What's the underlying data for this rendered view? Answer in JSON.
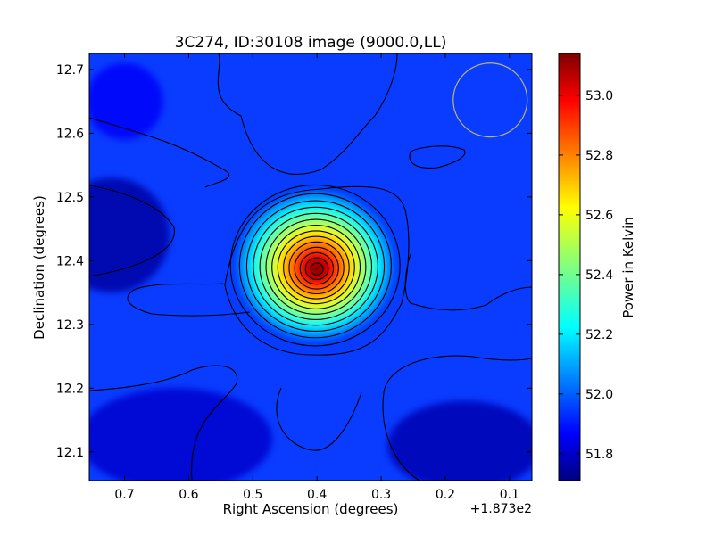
{
  "chart_data": {
    "type": "heatmap",
    "title": "3C274, ID:30108 image (9000.0,LL)",
    "xlabel": "Right Ascension (degrees)",
    "ylabel": "Declination (degrees)",
    "x_offset_label": "+1.873e2",
    "xlim": [
      0.755,
      0.065
    ],
    "ylim": [
      12.055,
      12.725
    ],
    "x_ticks": [
      0.7,
      0.6,
      0.5,
      0.4,
      0.3,
      0.2,
      0.1
    ],
    "x_tick_labels": [
      "0.7",
      "0.6",
      "0.5",
      "0.4",
      "0.3",
      "0.2",
      "0.1"
    ],
    "y_ticks": [
      12.1,
      12.2,
      12.3,
      12.4,
      12.5,
      12.6,
      12.7
    ],
    "y_tick_labels": [
      "12.1",
      "12.2",
      "12.3",
      "12.4",
      "12.5",
      "12.6",
      "12.7"
    ],
    "colorbar": {
      "label": "Power in Kelvin",
      "range": [
        51.71,
        53.14
      ],
      "ticks": [
        51.8,
        52.0,
        52.2,
        52.4,
        52.6,
        52.8,
        53.0
      ],
      "tick_labels": [
        "51.8",
        "52.0",
        "52.2",
        "52.4",
        "52.6",
        "52.8",
        "53.0"
      ],
      "colormap": "jet"
    },
    "peak": {
      "ra": 0.4,
      "dec": 12.387,
      "value": 53.14
    },
    "baseline_value": 51.98,
    "contour_levels": 14,
    "beam": {
      "ra": 0.13,
      "dec": 12.652,
      "radius_deg": 0.058,
      "color": "#bdb76b"
    }
  }
}
